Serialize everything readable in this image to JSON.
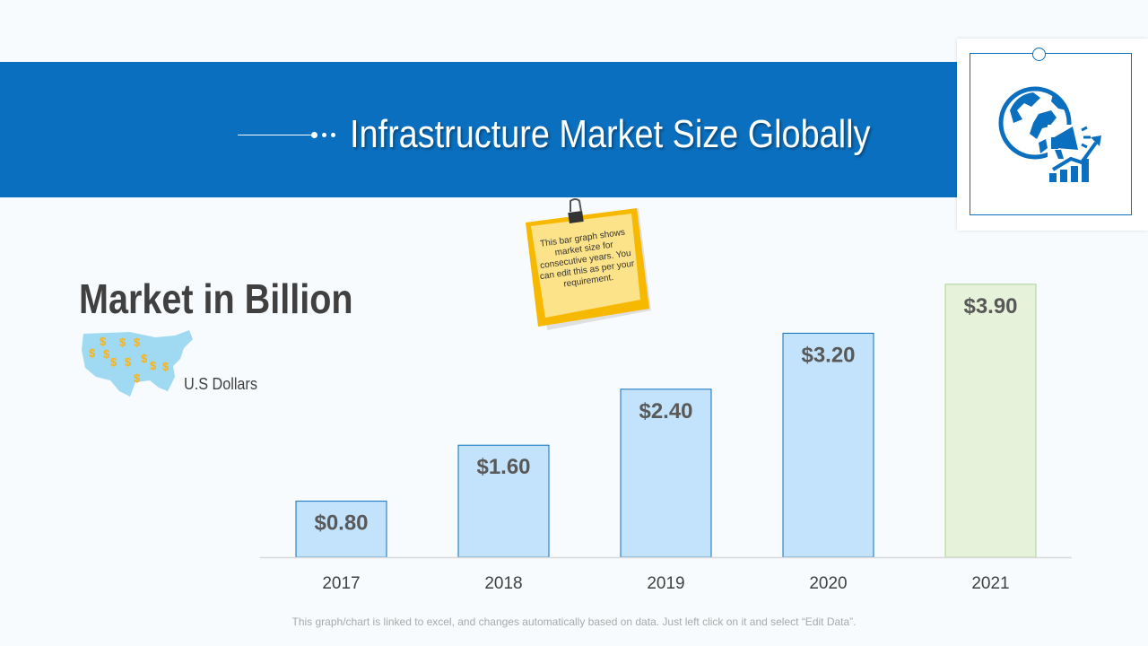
{
  "header": {
    "title": "Infrastructure Market Size Globally"
  },
  "left_panel": {
    "heading": "Market in Billion",
    "currency_label": "U.S Dollars"
  },
  "sticky_note": {
    "text": "This bar graph shows market size for consecutive years. You can edit this as per your requirement."
  },
  "footer": {
    "note": "This graph/chart is linked to excel, and changes automatically based on data. Just left click on it and select “Edit Data”."
  },
  "colors": {
    "brand": "#0a6fbe",
    "bar_blue": "#c2e3fb",
    "bar_green": "#e6f2da"
  },
  "chart_data": {
    "type": "bar",
    "title": "Market in Billion",
    "xlabel": "",
    "ylabel": "U.S Dollars",
    "categories": [
      "2017",
      "2018",
      "2019",
      "2020",
      "2021"
    ],
    "values": [
      0.8,
      1.6,
      2.4,
      3.2,
      3.9
    ],
    "data_labels": [
      "$0.80",
      "$1.60",
      "$2.40",
      "$3.20",
      "$3.90"
    ],
    "ylim": [
      0,
      4
    ],
    "grid": false,
    "highlight_category": "2021"
  }
}
